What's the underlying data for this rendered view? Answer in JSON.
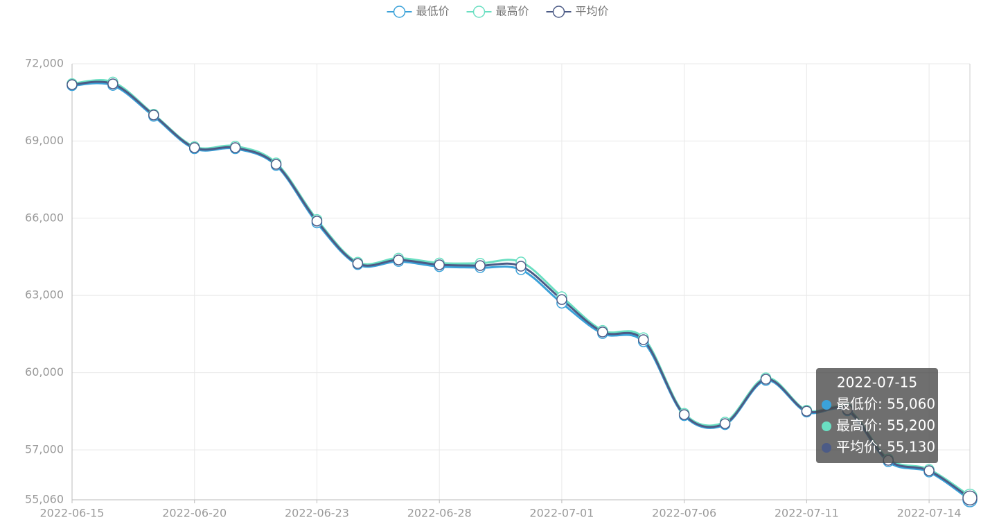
{
  "chart_data": {
    "type": "line",
    "categories": [
      "2022-06-15",
      null,
      null,
      "2022-06-20",
      null,
      null,
      "2022-06-23",
      null,
      null,
      "2022-06-28",
      null,
      null,
      "2022-07-01",
      null,
      null,
      "2022-07-06",
      null,
      null,
      "2022-07-11",
      null,
      null,
      "2022-07-14",
      null
    ],
    "series": [
      {
        "name": "最低价",
        "color": "#3ba2d9",
        "values": [
          71150,
          71160,
          69960,
          68700,
          68700,
          68050,
          65820,
          64200,
          64320,
          64120,
          64080,
          64000,
          62700,
          61520,
          61200,
          58330,
          57980,
          59700,
          58470,
          58520,
          56540,
          56140,
          55060
        ]
      },
      {
        "name": "最高价",
        "color": "#6adfc2",
        "values": [
          71230,
          71290,
          70040,
          68780,
          68800,
          68150,
          65950,
          64290,
          64450,
          64260,
          64250,
          64300,
          62950,
          61640,
          61360,
          58420,
          58080,
          59800,
          58540,
          58600,
          56650,
          56240,
          55200
        ]
      },
      {
        "name": "平均价",
        "color": "#4c5b86",
        "values": [
          71190,
          71220,
          70010,
          68740,
          68740,
          68095,
          65890,
          64240,
          64380,
          64190,
          64160,
          64135,
          62840,
          61580,
          61280,
          58370,
          58020,
          59745,
          58505,
          58560,
          56595,
          56190,
          55130
        ]
      }
    ],
    "ylim": [
      55060,
      72000
    ],
    "yticks": [
      {
        "value": 55060,
        "label": "55,060"
      },
      {
        "value": 57000,
        "label": "57,000"
      },
      {
        "value": 60000,
        "label": "60,000"
      },
      {
        "value": 63000,
        "label": "63,000"
      },
      {
        "value": 66000,
        "label": "66,000"
      },
      {
        "value": 69000,
        "label": "69,000"
      },
      {
        "value": 72000,
        "label": "72,000"
      }
    ],
    "grid": true,
    "smooth": true,
    "tooltip": {
      "title": "2022-07-15",
      "lines": [
        "最低价: 55,060",
        "最高价: 55,200",
        "平均价: 55,130"
      ]
    }
  }
}
